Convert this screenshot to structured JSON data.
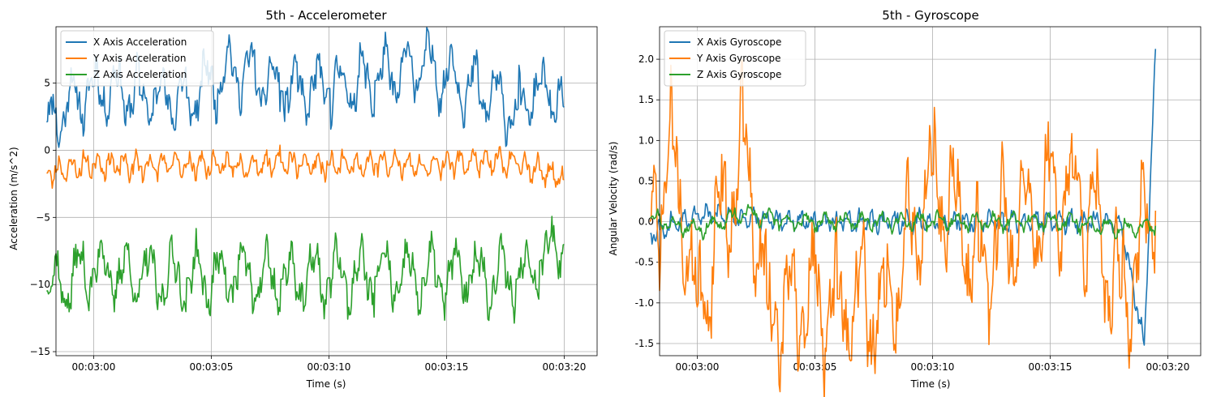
{
  "chart_data": [
    {
      "type": "line",
      "title": "5th - Accelerometer",
      "xlabel": "Time (s)",
      "ylabel": "Acceleration (m/s^2)",
      "xlim": [
        "00:02:58.4",
        "00:03:21.4"
      ],
      "ylim": [
        -15.3,
        9.2
      ],
      "x_ticks": [
        "00:03:00",
        "00:03:05",
        "00:03:10",
        "00:03:15",
        "00:03:20"
      ],
      "y_ticks": [
        -15,
        -10,
        -5,
        0,
        5
      ],
      "grid": true,
      "legend_position": "top-left",
      "series": [
        {
          "name": "X Axis Acceleration",
          "color": "#1f77b4",
          "mean": 3.4,
          "amplitude": 2.2,
          "period": 0.95,
          "seed": 11,
          "values": [
            [
              0,
              2.1
            ],
            [
              2,
              4.8
            ],
            [
              4,
              4.1
            ],
            [
              6,
              3.9
            ],
            [
              8,
              6.2
            ],
            [
              10,
              4.4
            ],
            [
              12,
              4.6
            ],
            [
              14,
              5.2
            ],
            [
              16,
              6.3
            ],
            [
              18,
              4.8
            ],
            [
              20,
              3.0
            ],
            [
              21,
              5.0
            ],
            [
              22,
              3.2
            ]
          ]
        },
        {
          "name": "Y Axis Acceleration",
          "color": "#ff7f0e",
          "mean": -1.1,
          "amplitude": 0.9,
          "period": 0.55,
          "seed": 23,
          "values": [
            [
              0,
              -1.7
            ],
            [
              2,
              -1.0
            ],
            [
              4,
              -1.2
            ],
            [
              6,
              -1.0
            ],
            [
              8,
              -1.2
            ],
            [
              10,
              -0.9
            ],
            [
              12,
              -1.1
            ],
            [
              14,
              -1.0
            ],
            [
              16,
              -1.1
            ],
            [
              18,
              -0.8
            ],
            [
              20,
              -1.0
            ],
            [
              21,
              -1.5
            ],
            [
              22,
              -2.2
            ]
          ]
        },
        {
          "name": "Z Axis Acceleration",
          "color": "#2ca02c",
          "mean": -9.6,
          "amplitude": 2.3,
          "period": 1.0,
          "seed": 37,
          "values": [
            [
              0,
              -10.5
            ],
            [
              2,
              -8.8
            ],
            [
              4,
              -9.6
            ],
            [
              6,
              -9.5
            ],
            [
              8,
              -9.4
            ],
            [
              10,
              -9.6
            ],
            [
              12,
              -9.5
            ],
            [
              14,
              -9.4
            ],
            [
              16,
              -9.5
            ],
            [
              18,
              -9.3
            ],
            [
              20,
              -9.6
            ],
            [
              21,
              -8.2
            ],
            [
              22,
              -7.0
            ]
          ]
        }
      ]
    },
    {
      "type": "line",
      "title": "5th - Gyroscope",
      "xlabel": "Time (s)",
      "ylabel": "Angular Velocity (rad/s)",
      "xlim": [
        "00:02:58.4",
        "00:03:21.4"
      ],
      "ylim": [
        -1.65,
        2.4
      ],
      "x_ticks": [
        "00:03:00",
        "00:03:05",
        "00:03:10",
        "00:03:15",
        "00:03:20"
      ],
      "y_ticks": [
        -1.5,
        -1.0,
        -0.5,
        0.0,
        0.5,
        1.0,
        1.5,
        2.0
      ],
      "grid": true,
      "legend_position": "top-left",
      "series": [
        {
          "name": "X Axis Gyroscope",
          "color": "#1f77b4",
          "mean": 0.0,
          "amplitude": 0.12,
          "period": 0.5,
          "seed": 53,
          "values": [
            [
              0,
              -0.15
            ],
            [
              2,
              0.1
            ],
            [
              4,
              0.05
            ],
            [
              6,
              0.0
            ],
            [
              8,
              0.0
            ],
            [
              10,
              0.0
            ],
            [
              12,
              0.0
            ],
            [
              14,
              0.0
            ],
            [
              16,
              0.0
            ],
            [
              18,
              0.0
            ],
            [
              20,
              0.0
            ],
            [
              21,
              -1.52
            ],
            [
              21.5,
              2.28
            ]
          ]
        },
        {
          "name": "Y Axis Gyroscope",
          "color": "#ff7f0e",
          "mean": 0.0,
          "amplitude": 0.8,
          "period": 1.0,
          "seed": 71,
          "values": [
            [
              0,
              0.0
            ],
            [
              1,
              0.93
            ],
            [
              2,
              -1.05
            ],
            [
              4,
              1.03
            ],
            [
              5,
              -1.08
            ],
            [
              8,
              -0.95
            ],
            [
              10,
              -1.05
            ],
            [
              12,
              0.6
            ],
            [
              14,
              -0.5
            ],
            [
              18,
              0.55
            ],
            [
              20,
              -0.95
            ],
            [
              21.5,
              0.15
            ]
          ]
        },
        {
          "name": "Z Axis Gyroscope",
          "color": "#2ca02c",
          "mean": 0.0,
          "amplitude": 0.1,
          "period": 0.8,
          "seed": 97,
          "values": [
            [
              0,
              0.05
            ],
            [
              2,
              -0.1
            ],
            [
              4,
              0.1
            ],
            [
              6,
              0.0
            ],
            [
              8,
              0.0
            ],
            [
              10,
              0.0
            ],
            [
              12,
              0.0
            ],
            [
              14,
              0.0
            ],
            [
              16,
              0.0
            ],
            [
              18,
              0.0
            ],
            [
              20,
              -0.1
            ],
            [
              21.5,
              -0.05
            ]
          ]
        }
      ]
    }
  ]
}
